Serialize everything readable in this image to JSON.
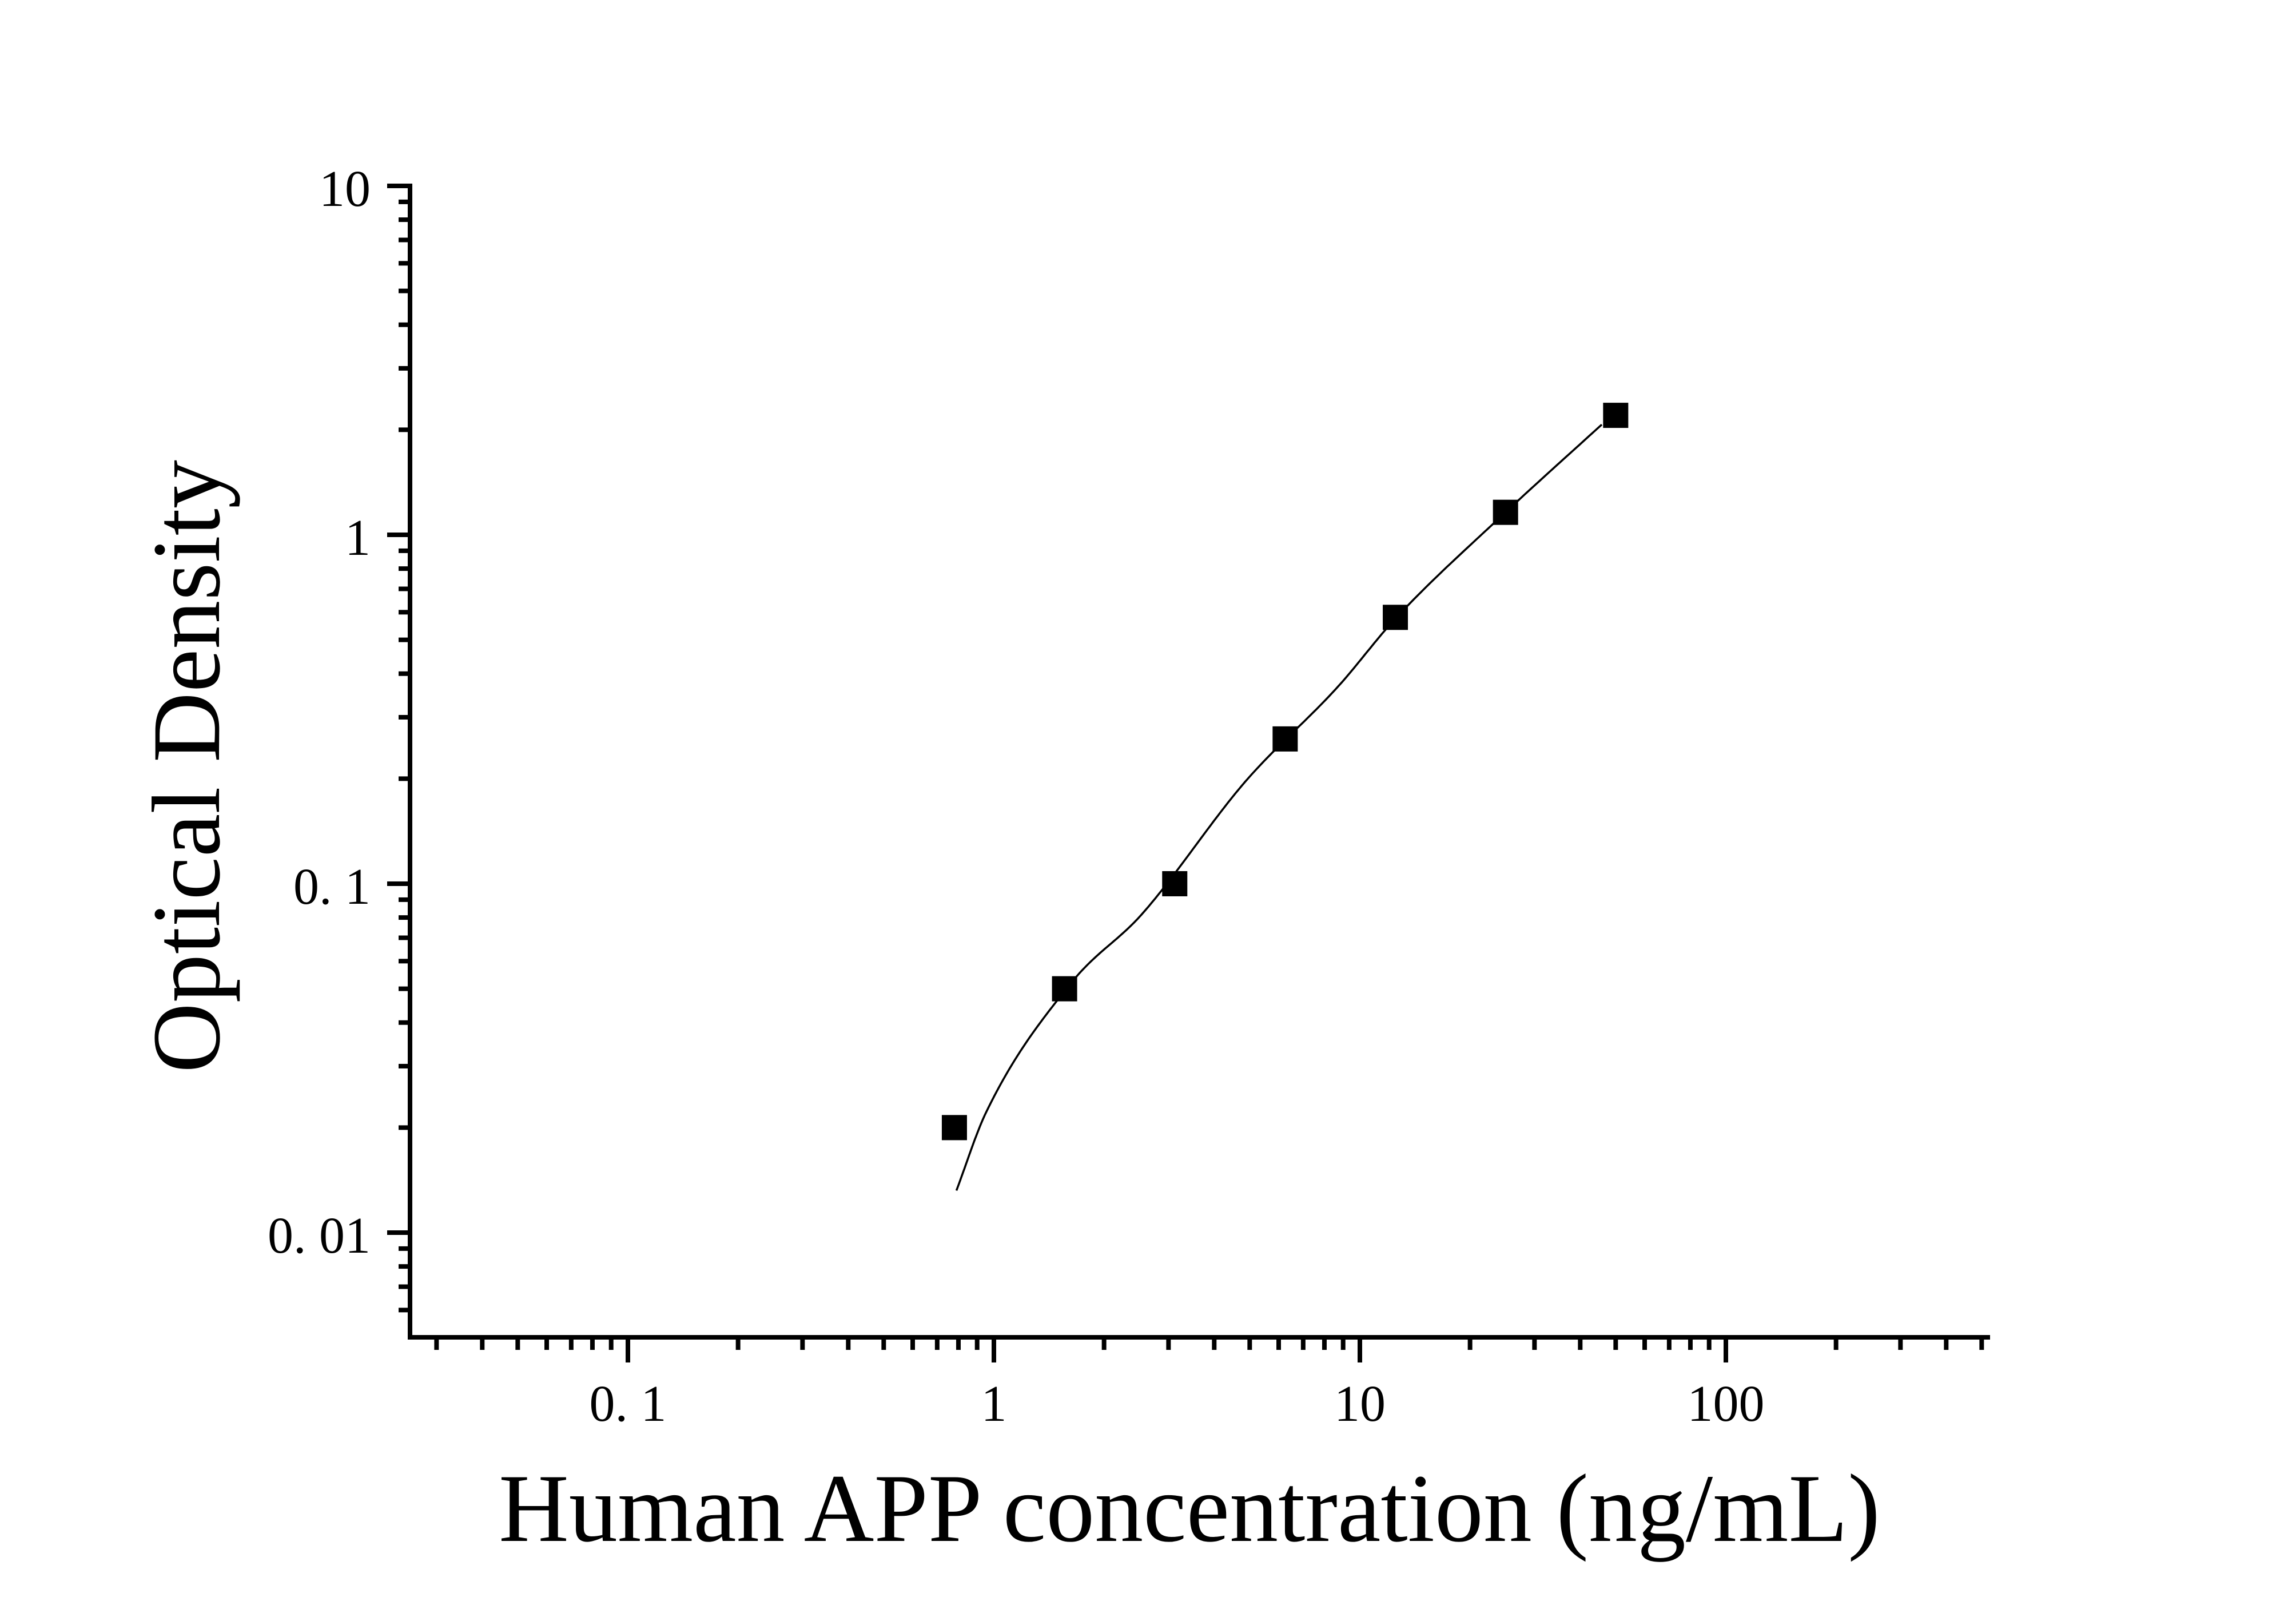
{
  "figure": {
    "background_color": "#ffffff",
    "ink_color": "#000000",
    "title": "",
    "legend": "none"
  },
  "chart_data": {
    "type": "scatter",
    "title": "",
    "xlabel": "Human APP concentration (ng/mL)",
    "ylabel": "Optical Density",
    "x_scale": "log",
    "y_scale": "log",
    "xlim": [
      0.026,
      530
    ],
    "ylim": [
      0.005,
      10
    ],
    "grid": false,
    "legend_position": "none",
    "series": [
      {
        "name": "standards",
        "marker": "filled-square",
        "color": "#000000",
        "x": [
          0.78,
          1.56,
          3.12,
          6.25,
          12.5,
          25,
          50
        ],
        "y": [
          0.02,
          0.05,
          0.1,
          0.26,
          0.58,
          1.16,
          2.2
        ]
      }
    ],
    "fit_curve": {
      "name": "standard-curve-fit",
      "color": "#000000",
      "x": [
        0.79,
        0.95,
        1.64,
        2.53,
        4.86,
        8.73,
        12.5,
        25,
        45.8
      ],
      "y": [
        0.0132,
        0.022,
        0.0525,
        0.0815,
        0.196,
        0.368,
        0.575,
        1.16,
        2.07
      ]
    },
    "x_axis": {
      "major_ticks": [
        {
          "value": 0.1,
          "label": "0. 1"
        },
        {
          "value": 1,
          "label": "1"
        },
        {
          "value": 10,
          "label": "10"
        },
        {
          "value": 100,
          "label": "100"
        }
      ]
    },
    "y_axis": {
      "major_ticks": [
        {
          "value": 10,
          "label": "10"
        },
        {
          "value": 1,
          "label": "1"
        },
        {
          "value": 0.1,
          "label": "0. 1"
        },
        {
          "value": 0.01,
          "label": "0. 01"
        }
      ]
    }
  }
}
